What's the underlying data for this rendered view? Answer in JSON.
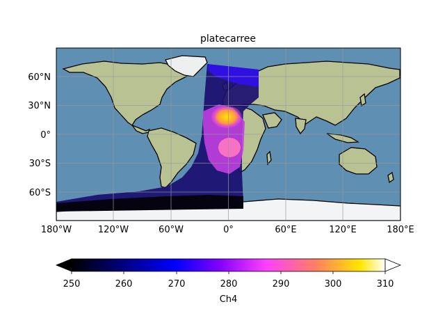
{
  "figure": {
    "title": "platecarree",
    "background_color": "#ffffff"
  },
  "map": {
    "projection": "PlateCarree",
    "extent": {
      "lon": [
        -180,
        180
      ],
      "lat": [
        -90,
        90
      ]
    },
    "gridlines": true,
    "ocean_color": "#5f8fb2",
    "land_color": "#b9c293",
    "ice_color": "#f2f4f6",
    "xticks": [
      {
        "value": -180,
        "label": "180°W"
      },
      {
        "value": -120,
        "label": "120°W"
      },
      {
        "value": -60,
        "label": "60°W"
      },
      {
        "value": 0,
        "label": "0°"
      },
      {
        "value": 60,
        "label": "60°E"
      },
      {
        "value": 120,
        "label": "120°E"
      },
      {
        "value": 180,
        "label": "180°E"
      }
    ],
    "yticks": [
      {
        "value": 60,
        "label": "60°N"
      },
      {
        "value": 30,
        "label": "30°N"
      },
      {
        "value": 0,
        "label": "0°"
      },
      {
        "value": -30,
        "label": "30°S"
      },
      {
        "value": -60,
        "label": "60°S"
      }
    ],
    "swath": {
      "variable": "Ch4",
      "description_visible": "satellite brightness temperature overlay (Atlantic sector)",
      "hot_region_values": {
        "saharan_africa": 305,
        "west_africa_coast": 290
      },
      "cold_region_values": {
        "antarctica": 250,
        "high_latitudes": 260
      }
    }
  },
  "colorbar": {
    "label": "Ch4",
    "colormap": "gnuplot2",
    "vmin": 250,
    "vmax": 310,
    "extend": "both",
    "ticks": [
      250,
      260,
      270,
      280,
      290,
      300,
      310
    ],
    "tick_labels": [
      "250",
      "260",
      "270",
      "280",
      "290",
      "300",
      "310"
    ],
    "stops": [
      "#000000",
      "#0000ff",
      "#8000ff",
      "#ff40ff",
      "#ff8060",
      "#ffe600",
      "#ffffff"
    ]
  }
}
